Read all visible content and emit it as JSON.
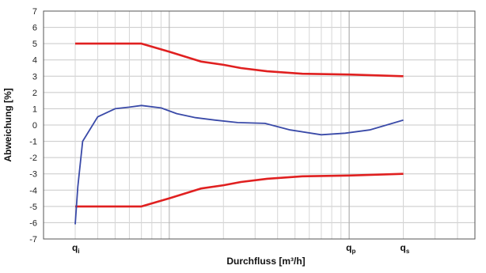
{
  "chart_data": {
    "type": "line",
    "title": "",
    "xlabel": "Durchfluss [m³/h]",
    "ylabel": "Abweichung [%]",
    "xscale": "log",
    "ylim": [
      -7,
      7
    ],
    "yticks": [
      7,
      6,
      5,
      4,
      3,
      2,
      1,
      0,
      -1,
      -2,
      -3,
      -4,
      -5,
      -6,
      -7
    ],
    "grid": true,
    "legend": "none",
    "x_markers": [
      {
        "base": "q",
        "sub": "i"
      },
      {
        "base": "q",
        "sub": "p"
      },
      {
        "base": "q",
        "sub": "s"
      }
    ],
    "series": [
      {
        "color": "#e02020",
        "x": [
          0.03,
          0.07,
          0.1,
          0.15,
          0.2,
          0.25,
          0.35,
          0.55,
          1.0,
          2.0
        ],
        "values": [
          5,
          5,
          4.5,
          3.9,
          3.7,
          3.5,
          3.3,
          3.15,
          3.1,
          3.0
        ]
      },
      {
        "color": "#e02020",
        "x": [
          0.03,
          0.07,
          0.1,
          0.15,
          0.2,
          0.25,
          0.35,
          0.55,
          1.0,
          2.0
        ],
        "values": [
          -5,
          -5,
          -4.5,
          -3.9,
          -3.7,
          -3.5,
          -3.3,
          -3.15,
          -3.1,
          -3.0
        ]
      },
      {
        "color": "#3a4aa8",
        "x": [
          0.03,
          0.031,
          0.033,
          0.04,
          0.05,
          0.06,
          0.07,
          0.09,
          0.11,
          0.14,
          0.18,
          0.24,
          0.34,
          0.47,
          0.7,
          0.95,
          1.3,
          2.0
        ],
        "values": [
          -6.1,
          -3.8,
          -1.0,
          0.5,
          1.0,
          1.1,
          1.2,
          1.05,
          0.7,
          0.45,
          0.3,
          0.15,
          0.1,
          -0.3,
          -0.6,
          -0.5,
          -0.3,
          0.3
        ]
      }
    ]
  }
}
